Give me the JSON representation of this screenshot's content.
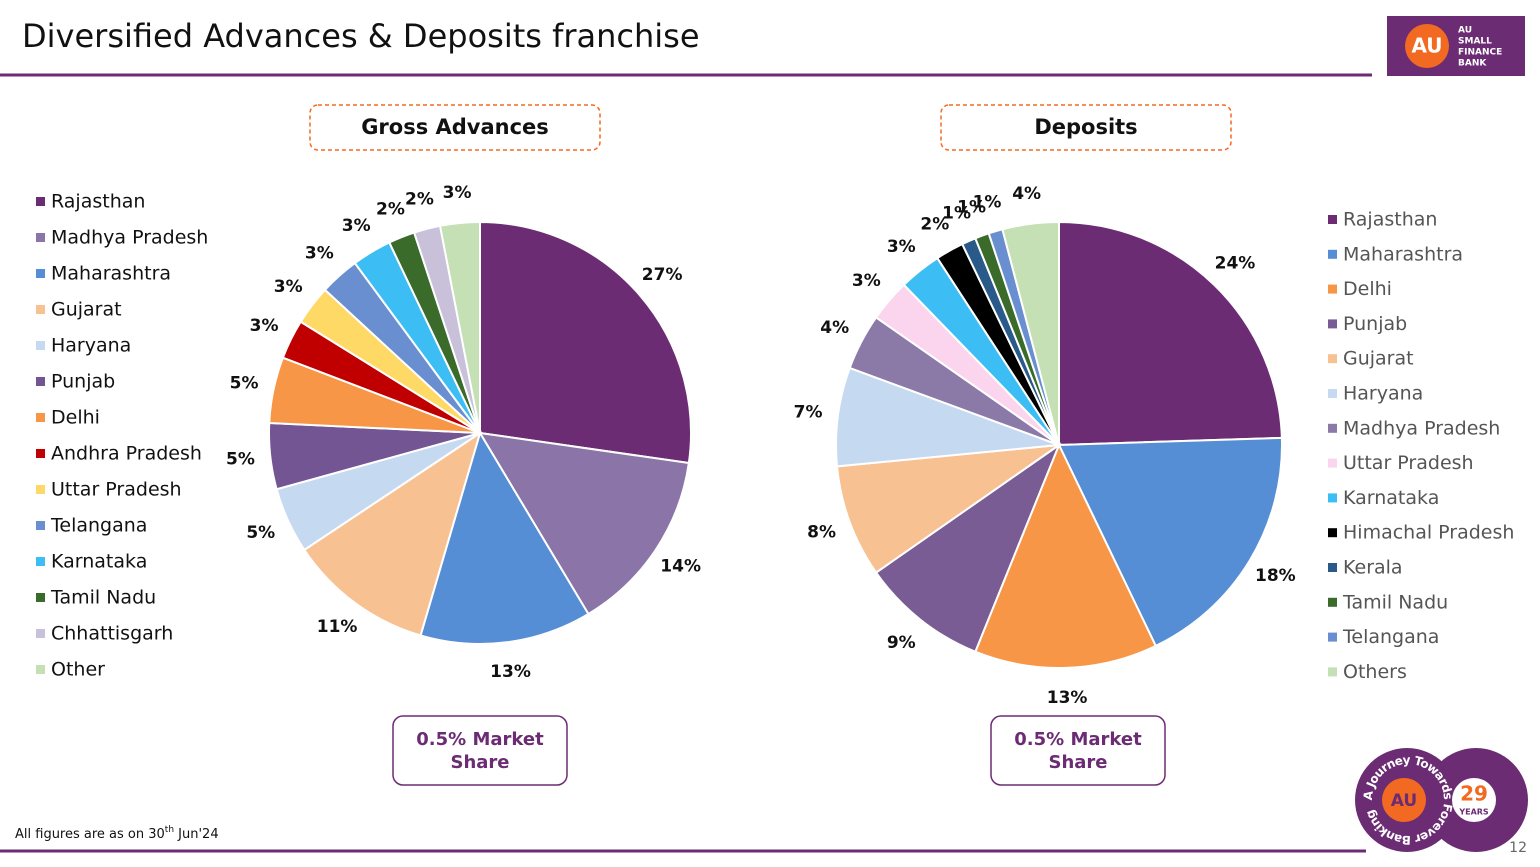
{
  "page": {
    "title": "Diversified Advances & Deposits franchise",
    "logo": {
      "mark": "AU",
      "lines": [
        "AU",
        "SMALL",
        "FINANCE",
        "BANK"
      ]
    },
    "footnote": {
      "text": "All figures are as on 30",
      "sup": "th",
      "rest": " Jun'24"
    },
    "page_number": "12",
    "badge": {
      "mark": "AU",
      "years": "29",
      "years_label": "YEARS",
      "motto": "A Journey Towards Forever Banking"
    }
  },
  "chart_data": [
    {
      "type": "pie",
      "title": "Gross Advances",
      "annotation": [
        "0.5% Market",
        "Share"
      ],
      "legend": "left",
      "categories": [
        "Rajasthan",
        "Madhya Pradesh",
        "Maharashtra",
        "Gujarat",
        "Haryana",
        "Punjab",
        "Delhi",
        "Andhra Pradesh",
        "Uttar Pradesh",
        "Telangana",
        "Karnataka",
        "Tamil Nadu",
        "Chhattisgarh",
        "Other"
      ],
      "values": [
        27,
        14,
        13,
        11,
        5,
        5,
        5,
        3,
        3,
        3,
        3,
        2,
        2,
        3
      ],
      "value_labels": [
        "27%",
        "14%",
        "13%",
        "11%",
        "5%",
        "5%",
        "5%",
        "3%",
        "3%",
        "3%",
        "3%",
        "2%",
        "2%",
        "3%"
      ],
      "colors": [
        "#6b2c74",
        "#8b75a8",
        "#558ed5",
        "#f8c192",
        "#c5d9f1",
        "#725592",
        "#f79646",
        "#c00000",
        "#ffd966",
        "#6a8fd0",
        "#3cbef5",
        "#3a6b2a",
        "#c9c0da",
        "#c4e0b4"
      ]
    },
    {
      "type": "pie",
      "title": "Deposits",
      "annotation": [
        "0.5% Market",
        "Share"
      ],
      "legend": "right",
      "categories": [
        "Rajasthan",
        "Maharashtra",
        "Delhi",
        "Punjab",
        "Gujarat",
        "Haryana",
        "Madhya Pradesh",
        "Uttar Pradesh",
        "Karnataka",
        "Himachal Pradesh",
        "Kerala",
        "Tamil Nadu",
        "Telangana",
        "Others"
      ],
      "values": [
        24,
        18,
        13,
        9,
        8,
        7,
        4,
        3,
        3,
        2,
        1,
        1,
        1,
        4
      ],
      "value_labels": [
        "24%",
        "18%",
        "13%",
        "9%",
        "8%",
        "7%",
        "4%",
        "3%",
        "3%",
        "2%",
        "1%",
        "1%",
        "1%",
        "4%"
      ],
      "colors": [
        "#6b2c74",
        "#558ed5",
        "#f79646",
        "#7a5c94",
        "#f8c192",
        "#c5d9f1",
        "#8b79a8",
        "#fbd5ee",
        "#3cbef5",
        "#000000",
        "#2a5a8a",
        "#3a6b2a",
        "#6a8fd0",
        "#c4e0b4"
      ]
    }
  ]
}
